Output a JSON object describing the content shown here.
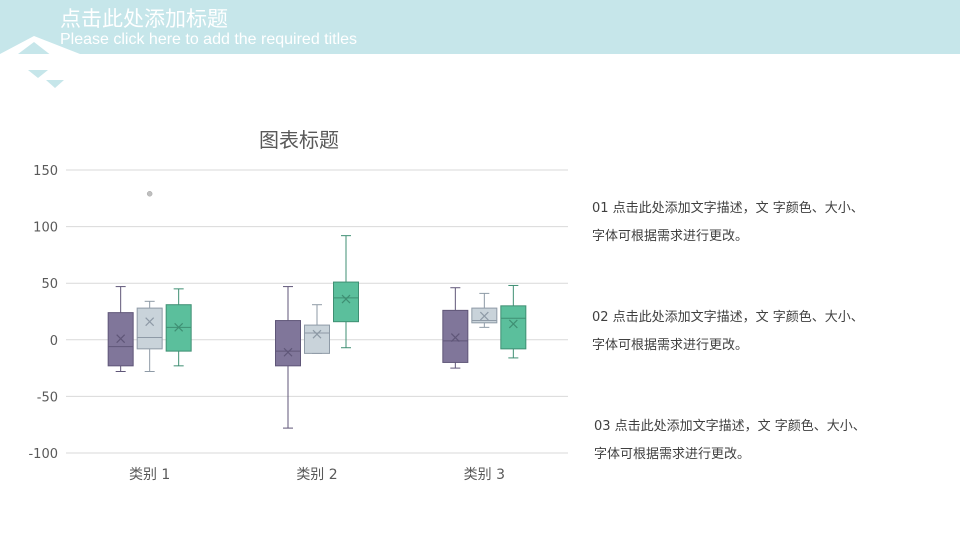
{
  "header": {
    "title": "点击此处添加标题",
    "subtitle": "Please click here to add the required titles"
  },
  "colors": {
    "header_band": "#c6e6ea",
    "series_1": "#80769a",
    "series_2": "#c9d3da",
    "series_3": "#5bbf9c"
  },
  "chart_data": {
    "type": "box",
    "title": "图表标题",
    "categories": [
      "类别 1",
      "类别 2",
      "类别 3"
    ],
    "ylim": [
      -100,
      150
    ],
    "yticks": [
      -100,
      -50,
      0,
      50,
      100,
      150
    ],
    "grid": true,
    "series": [
      {
        "boxes": [
          {
            "min": -28,
            "q1": -23,
            "median": -6,
            "q3": 24,
            "max": 47,
            "mean": 1
          },
          {
            "min": -78,
            "q1": -23,
            "median": -10,
            "q3": 17,
            "max": 47,
            "mean": -11
          },
          {
            "min": -25,
            "q1": -20,
            "median": -1,
            "q3": 26,
            "max": 46,
            "mean": 2
          }
        ]
      },
      {
        "boxes": [
          {
            "min": -28,
            "q1": -8,
            "median": 2,
            "q3": 28,
            "max": 34,
            "mean": 16,
            "outliers": [
              129
            ]
          },
          {
            "min": -12,
            "q1": -12,
            "median": 6,
            "q3": 13,
            "max": 31,
            "mean": 5
          },
          {
            "min": 11,
            "q1": 15,
            "median": 17,
            "q3": 28,
            "max": 41,
            "mean": 21
          }
        ]
      },
      {
        "boxes": [
          {
            "min": -23,
            "q1": -10,
            "median": 11,
            "q3": 31,
            "max": 45,
            "mean": 11
          },
          {
            "min": -7,
            "q1": 16,
            "median": 37,
            "q3": 51,
            "max": 92,
            "mean": 36
          },
          {
            "min": -16,
            "q1": -8,
            "median": 19,
            "q3": 30,
            "max": 48,
            "mean": 14
          }
        ]
      }
    ]
  },
  "descriptions": [
    {
      "line1": "01  点击此处添加文字描述，文    字颜色、大小、",
      "line2": "字体可根据需求进行更改。"
    },
    {
      "line1": "02  点击此处添加文字描述，文    字颜色、大小、",
      "line2": "字体可根据需求进行更改。"
    },
    {
      "line1": "03  点击此处添加文字描述，文    字颜色、大小、",
      "line2": "字体可根据需求进行更改。"
    }
  ]
}
